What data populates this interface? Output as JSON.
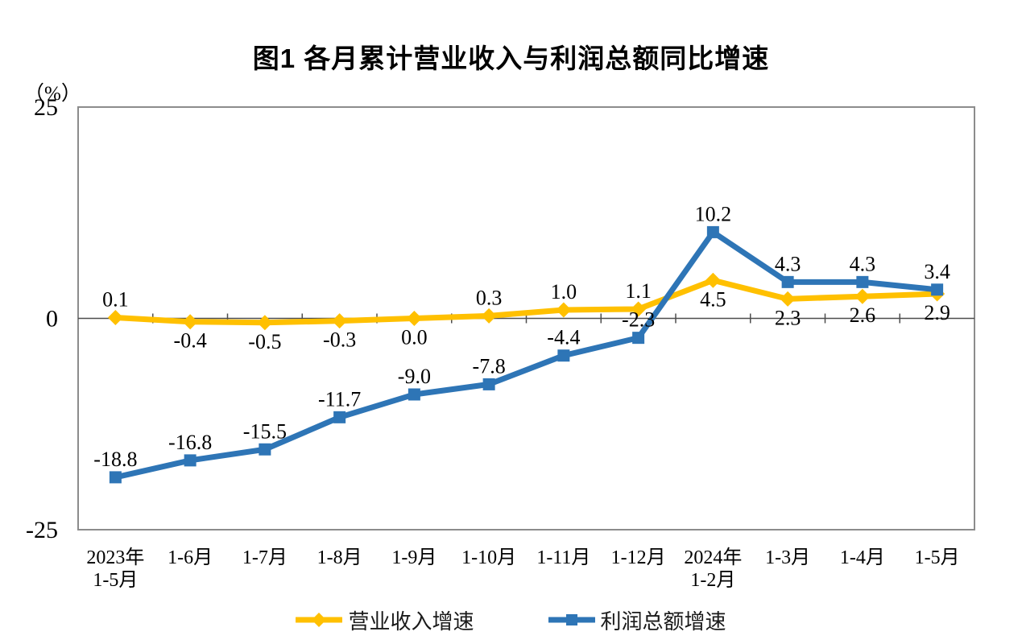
{
  "title": "图1 各月累计营业收入与利润总额同比增速",
  "y_axis_unit": "（%）",
  "colors": {
    "revenue_line": "#FFC000",
    "profit_line": "#2E75B6",
    "plot_frame": "#8C8C8C",
    "axis_line": "#4D4D4D",
    "data_label": "#000000"
  },
  "chart_data": {
    "type": "line",
    "title": "图1 各月累计营业收入与利润总额同比增速",
    "ylabel": "（%）",
    "ylim": [
      -25,
      25
    ],
    "yticks": [
      25,
      0,
      -25
    ],
    "grid": false,
    "legend_position": "bottom",
    "categories": [
      "2023年\n1-5月",
      "1-6月",
      "1-7月",
      "1-8月",
      "1-9月",
      "1-10月",
      "1-11月",
      "1-12月",
      "2024年\n1-2月",
      "1-3月",
      "1-4月",
      "1-5月"
    ],
    "series": [
      {
        "name": "营业收入增速",
        "color": "#FFC000",
        "marker": "diamond",
        "values": [
          0.1,
          -0.4,
          -0.5,
          -0.3,
          0.0,
          0.3,
          1.0,
          1.1,
          4.5,
          2.3,
          2.6,
          2.9
        ],
        "label_positions": [
          "above",
          "below",
          "below",
          "below",
          "below",
          "above",
          "above",
          "above",
          "below",
          "below",
          "below",
          "below"
        ]
      },
      {
        "name": "利润总额增速",
        "color": "#2E75B6",
        "marker": "square",
        "values": [
          -18.8,
          -16.8,
          -15.5,
          -11.7,
          -9.0,
          -7.8,
          -4.4,
          -2.3,
          10.2,
          4.3,
          4.3,
          3.4
        ],
        "label_positions": [
          "above",
          "above",
          "above",
          "above",
          "above",
          "above",
          "above",
          "above",
          "above",
          "above",
          "above",
          "above"
        ]
      }
    ]
  }
}
